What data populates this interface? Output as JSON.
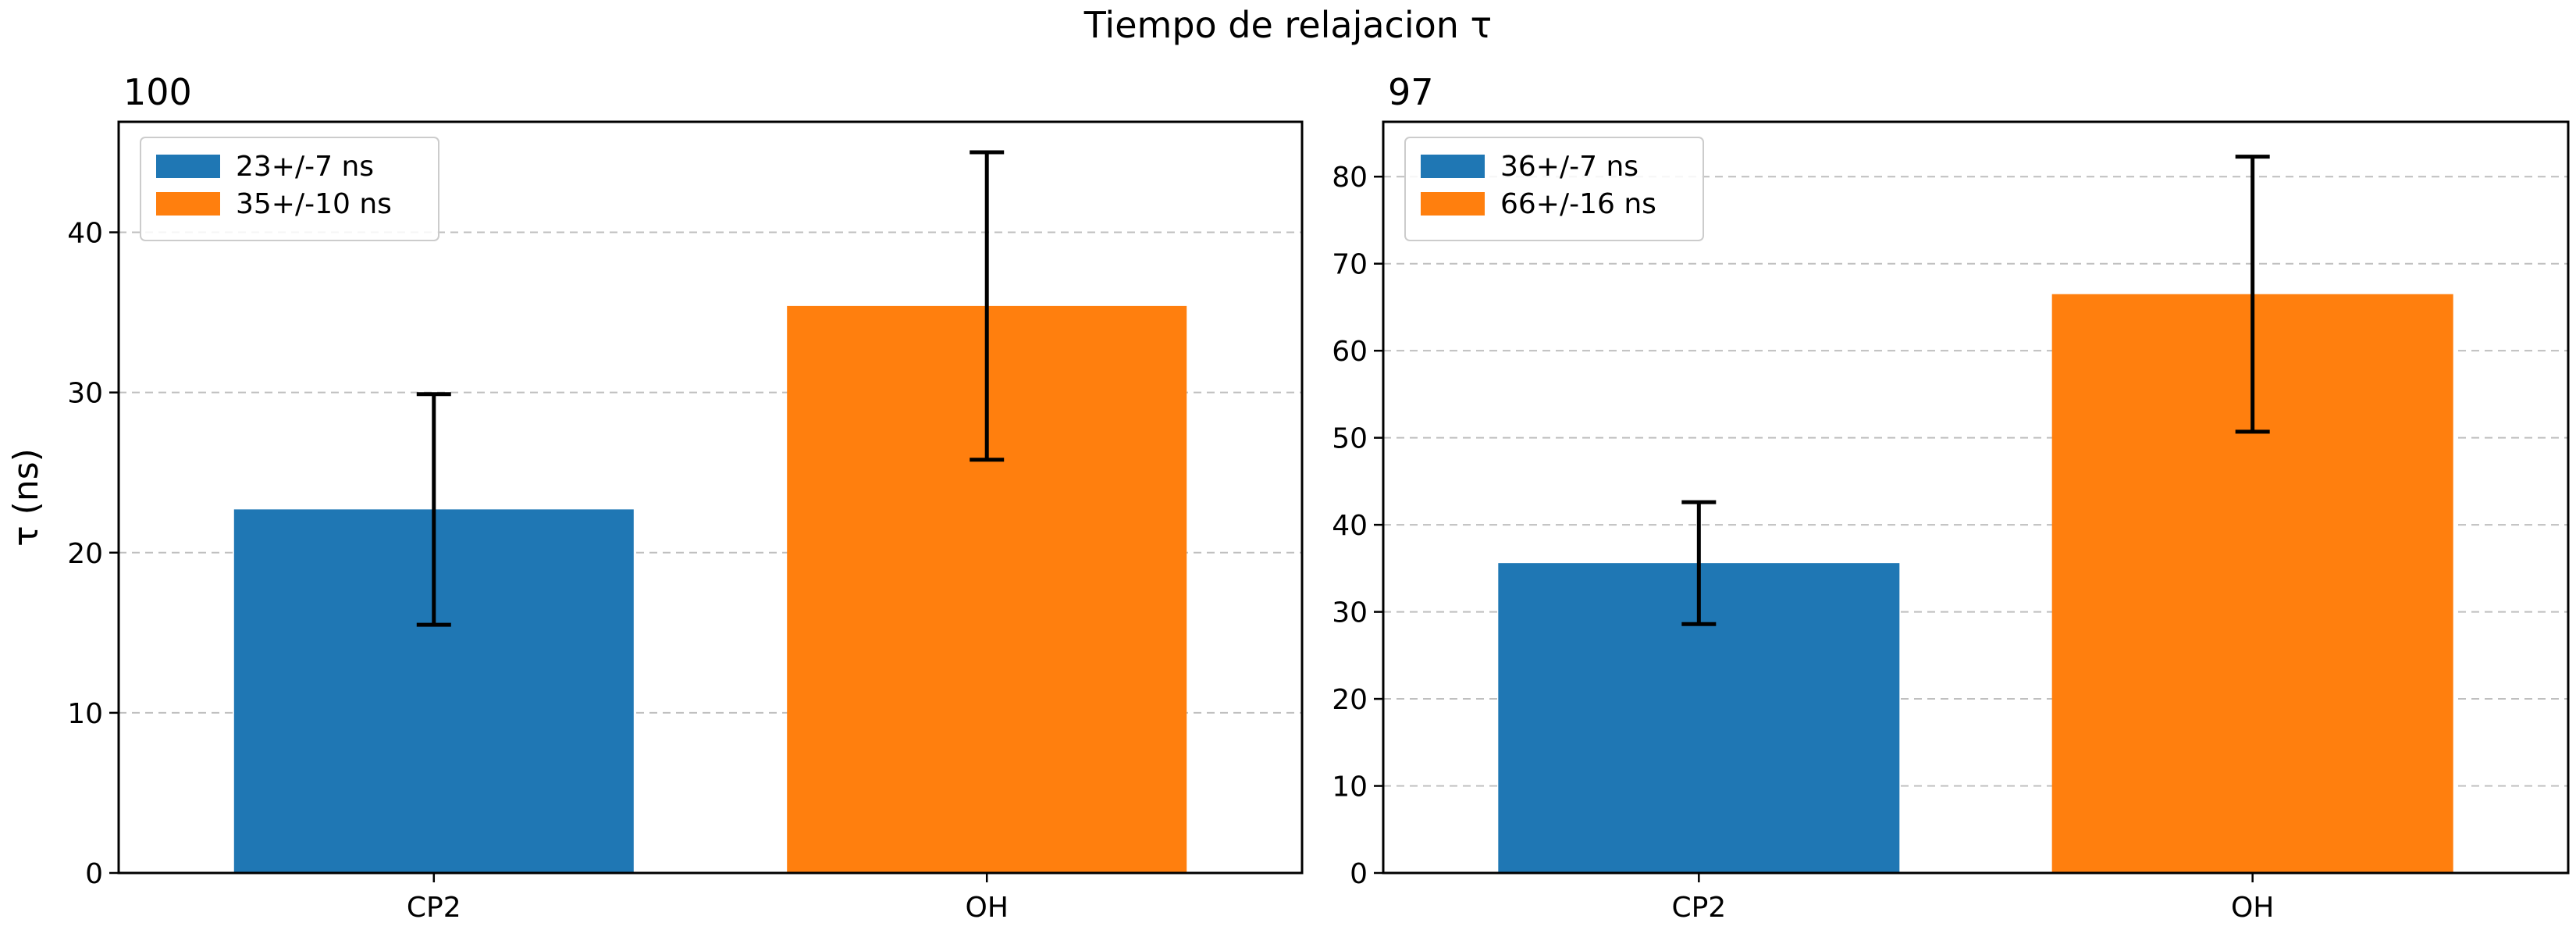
{
  "figure": {
    "suptitle": "Tiempo de relajacion τ"
  },
  "chart_data": [
    {
      "type": "bar",
      "title": "100",
      "xlabel": "",
      "ylabel": "τ (ns)",
      "categories": [
        "CP2",
        "OH"
      ],
      "values": [
        22.7,
        35.4
      ],
      "errors": [
        7.2,
        9.6
      ],
      "colors": [
        "#1f77b4",
        "#ff7f0e"
      ],
      "ylim": [
        0,
        46.9
      ],
      "yticks": [
        0,
        10,
        20,
        30,
        40
      ],
      "grid": true,
      "legend_position": "top-left",
      "legend": [
        {
          "label": "23+/-7 ns",
          "color": "#1f77b4"
        },
        {
          "label": "35+/-10 ns",
          "color": "#ff7f0e"
        }
      ]
    },
    {
      "type": "bar",
      "title": "97",
      "xlabel": "",
      "ylabel": "",
      "categories": [
        "CP2",
        "OH"
      ],
      "values": [
        35.6,
        66.5
      ],
      "errors": [
        7.0,
        15.8
      ],
      "colors": [
        "#1f77b4",
        "#ff7f0e"
      ],
      "ylim": [
        0,
        86.3
      ],
      "yticks": [
        0,
        10,
        20,
        30,
        40,
        50,
        60,
        70,
        80
      ],
      "grid": true,
      "legend_position": "top-left",
      "legend": [
        {
          "label": "36+/-7 ns",
          "color": "#1f77b4"
        },
        {
          "label": "66+/-16 ns",
          "color": "#ff7f0e"
        }
      ]
    }
  ]
}
